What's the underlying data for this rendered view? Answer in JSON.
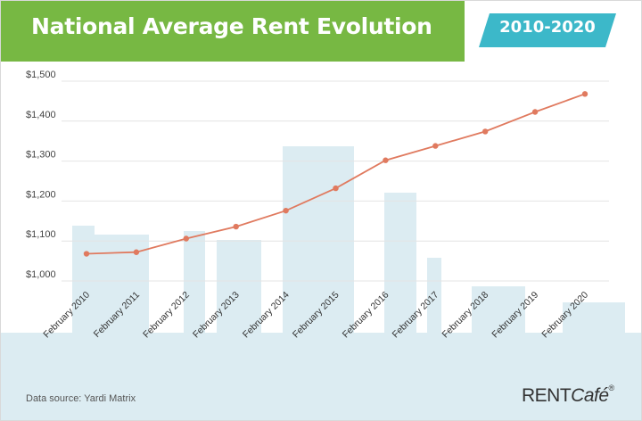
{
  "header": {
    "title": "National Average Rent Evolution",
    "period_badge": "2010-2020"
  },
  "footer": {
    "source": "Data source:  Yardi Matrix",
    "logo_main": "RENT",
    "logo_italic": "Café",
    "logo_mark": "®"
  },
  "colors": {
    "header_green": "#77b843",
    "badge_teal": "#3cb8c9",
    "line": "#e07a5f",
    "skyline": "#dcecf2",
    "grid": "#e4e4e4"
  },
  "chart_data": {
    "type": "line",
    "title": "National Average Rent Evolution",
    "subtitle": "2010-2020",
    "xlabel": "",
    "ylabel": "",
    "categories": [
      "February 2010",
      "February 2011",
      "February 2012",
      "February 2013",
      "February 2014",
      "February 2015",
      "February 2016",
      "February 2017",
      "February 2018",
      "February 2019",
      "February 2020"
    ],
    "series": [
      {
        "name": "National Average Rent",
        "values": [
          1068,
          1072,
          1106,
          1136,
          1176,
          1232,
          1302,
          1338,
          1374,
          1423,
          1468
        ]
      }
    ],
    "yticks": [
      1000,
      1100,
      1200,
      1300,
      1400,
      1500
    ],
    "ytick_labels": [
      "$1,000",
      "$1,100",
      "$1,200",
      "$1,300",
      "$1,400",
      "$1,500"
    ],
    "ylim": [
      1000,
      1500
    ],
    "grid": true,
    "legend": "none",
    "source": "Data source:  Yardi Matrix"
  }
}
